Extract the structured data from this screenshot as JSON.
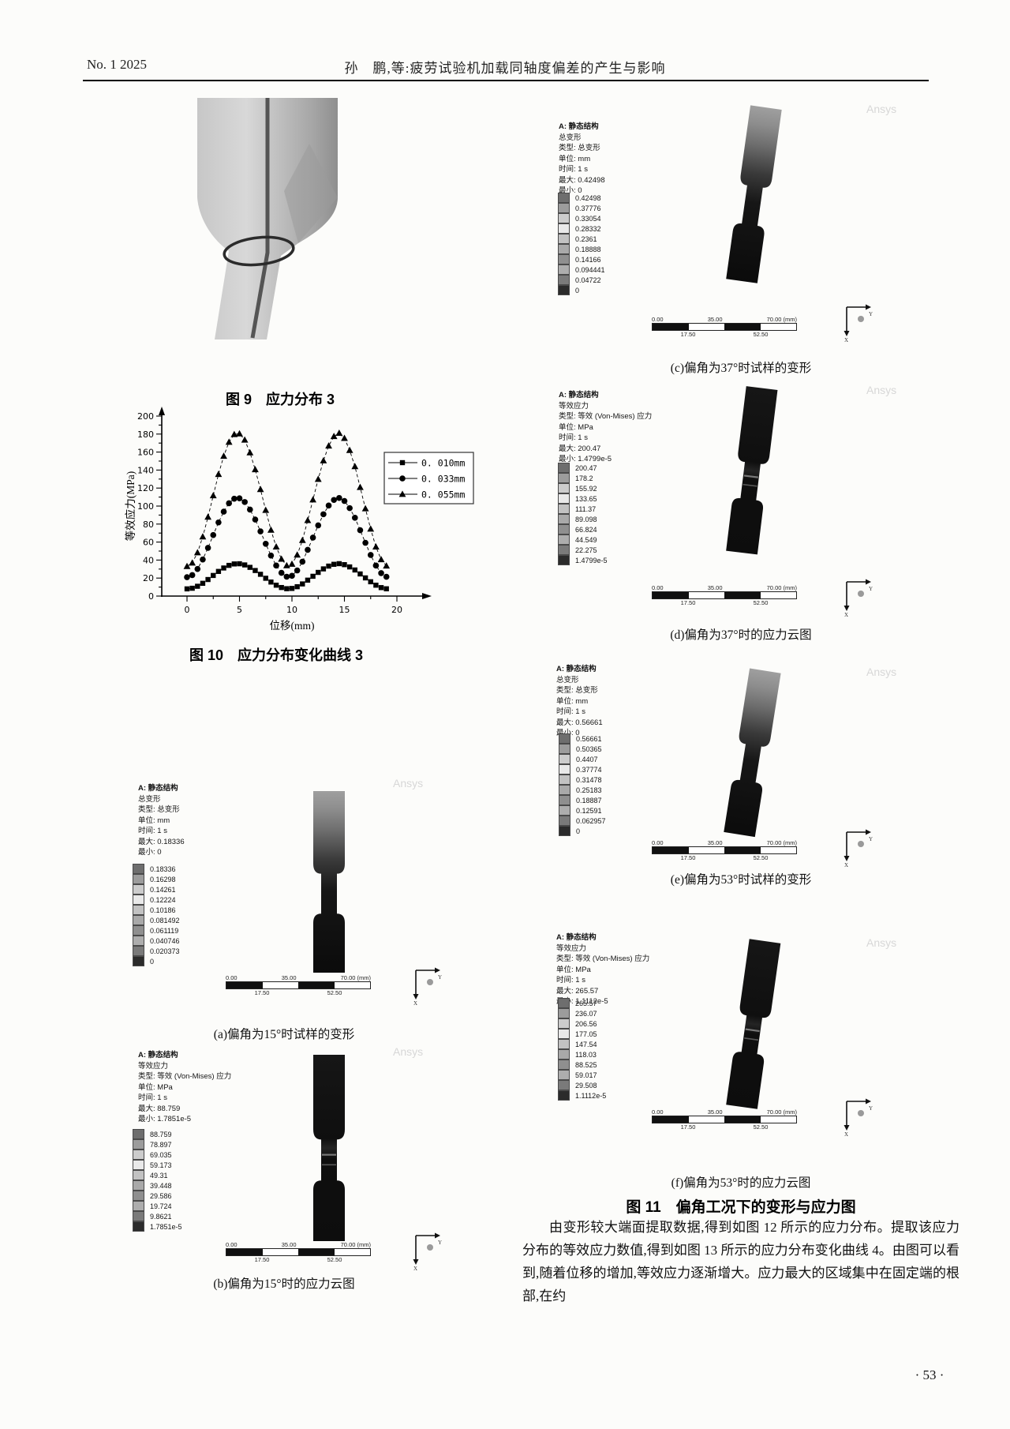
{
  "header": {
    "issue": "No. 1 2025",
    "title": "孙　鹏,等:疲劳试验机加载同轴度偏差的产生与影响"
  },
  "figures": {
    "fig9_caption": "图 9　应力分布 3",
    "fig10_caption": "图 10　应力分布变化曲线 3",
    "fig11_caption": "图 11　偏角工况下的变形与应力图"
  },
  "chart_data": {
    "type": "line",
    "title": "",
    "xlabel": "位移(mm)",
    "ylabel": "等效应力(MPa)",
    "xlim": [
      0,
      20
    ],
    "ylim": [
      0,
      200
    ],
    "x_tick_step": 5,
    "y_tick_step": 20,
    "grid": false,
    "legend_position": "top-right",
    "x_start": 0,
    "x_step": 0.5,
    "series": [
      {
        "name": "0. 010mm",
        "marker": "square",
        "values": [
          8,
          8.7,
          10.9,
          14.2,
          18.4,
          22.9,
          27.4,
          31.2,
          34.1,
          35.7,
          35.9,
          34.6,
          31.9,
          28.4,
          24.2,
          19.8,
          15.6,
          12.1,
          9.5,
          8.2,
          8.5,
          10.4,
          13.5,
          17.7,
          22,
          26.3,
          30.2,
          33.3,
          35.3,
          36,
          34.9,
          32.4,
          29,
          24.6,
          20.2,
          15.9,
          12.1,
          9.4,
          8.1
        ]
      },
      {
        "name": "0. 033mm",
        "marker": "circle",
        "values": [
          21,
          23.3,
          30.1,
          40.6,
          53.6,
          67.8,
          81.8,
          93.8,
          103.1,
          108.2,
          108.6,
          104.5,
          96.1,
          85,
          71.9,
          58.1,
          45,
          33.9,
          25.8,
          21.5,
          22.5,
          28.5,
          38.2,
          51.4,
          65,
          78.6,
          90.9,
          100.6,
          106.8,
          109,
          105.7,
          97.7,
          87,
          73.2,
          59.2,
          45.7,
          33.9,
          25.5,
          21.4
        ]
      },
      {
        "name": "0. 055mm",
        "marker": "triangle",
        "values": [
          33,
          36.9,
          48.3,
          65.9,
          87.8,
          111.6,
          135.3,
          155.5,
          171.1,
          179.6,
          180.4,
          173.5,
          159.3,
          140.6,
          118.6,
          95.4,
          73.4,
          54.7,
          41.1,
          33.9,
          35.5,
          45.7,
          62,
          84.1,
          107,
          129.9,
          150.5,
          166.9,
          177.4,
          181,
          175.4,
          162,
          144,
          120.9,
          97.2,
          74.6,
          54.7,
          40.6,
          33.6
        ]
      }
    ]
  },
  "colorbar_colors": [
    "#6e6e6e",
    "#9c9c9c",
    "#cccccc",
    "#e9e9e9",
    "#c2c2c2",
    "#a9a9a9",
    "#8f8f8f",
    "#adadad",
    "#7a7a7a",
    "#2b2b2b"
  ],
  "ansys_panels": [
    {
      "label": "a",
      "kind": "deformation",
      "watermark": "Ansys",
      "caption": "(a)偏角为15°时试样的变形",
      "header_lines": [
        "A: 静态结构",
        "总变形",
        "类型: 总变形",
        "单位: mm",
        "时间: 1 s",
        "最大: 0.18336",
        "最小: 0"
      ],
      "scale_labels": [
        "0.18336",
        "0.16298",
        "0.14261",
        "0.12224",
        "0.10186",
        "0.081492",
        "0.061119",
        "0.040746",
        "0.020373",
        "0"
      ],
      "ruler": {
        "top": [
          "0.00",
          "35.00",
          "70.00 (mm)"
        ],
        "bottom": [
          "17.50",
          "52.50"
        ]
      },
      "triad_labels": [
        "Y",
        "X"
      ]
    },
    {
      "label": "b",
      "kind": "stress",
      "watermark": "Ansys",
      "caption": "(b)偏角为15°时的应力云图",
      "header_lines": [
        "A: 静态结构",
        "等效应力",
        "类型: 等效 (Von-Mises) 应力",
        "单位: MPa",
        "时间: 1 s",
        "最大: 88.759",
        "最小: 1.7851e-5"
      ],
      "scale_labels": [
        "88.759",
        "78.897",
        "69.035",
        "59.173",
        "49.31",
        "39.448",
        "29.586",
        "19.724",
        "9.8621",
        "1.7851e-5"
      ],
      "ruler": {
        "top": [
          "0.00",
          "35.00",
          "70.00 (mm)"
        ],
        "bottom": [
          "17.50",
          "52.50"
        ]
      },
      "triad_labels": [
        "Y",
        "X"
      ]
    },
    {
      "label": "c",
      "kind": "deformation",
      "watermark": "Ansys",
      "caption": "(c)偏角为37°时试样的变形",
      "header_lines": [
        "A: 静态结构",
        "总变形",
        "类型: 总变形",
        "单位: mm",
        "时间: 1 s",
        "最大: 0.42498",
        "最小: 0"
      ],
      "scale_labels": [
        "0.42498",
        "0.37776",
        "0.33054",
        "0.28332",
        "0.2361",
        "0.18888",
        "0.14166",
        "0.094441",
        "0.04722",
        "0"
      ],
      "ruler": {
        "top": [
          "0.00",
          "35.00",
          "70.00 (mm)"
        ],
        "bottom": [
          "17.50",
          "52.50"
        ]
      },
      "triad_labels": [
        "Y",
        "X"
      ]
    },
    {
      "label": "d",
      "kind": "stress",
      "watermark": "Ansys",
      "caption": "(d)偏角为37°时的应力云图",
      "header_lines": [
        "A: 静态结构",
        "等效应力",
        "类型: 等效 (Von-Mises) 应力",
        "单位: MPa",
        "时间: 1 s",
        "最大: 200.47",
        "最小: 1.4799e-5"
      ],
      "scale_labels": [
        "200.47",
        "178.2",
        "155.92",
        "133.65",
        "111.37",
        "89.098",
        "66.824",
        "44.549",
        "22.275",
        "1.4799e-5"
      ],
      "ruler": {
        "top": [
          "0.00",
          "35.00",
          "70.00 (mm)"
        ],
        "bottom": [
          "17.50",
          "52.50"
        ]
      },
      "triad_labels": [
        "Y",
        "X"
      ]
    },
    {
      "label": "e",
      "kind": "deformation",
      "watermark": "Ansys",
      "caption": "(e)偏角为53°时试样的变形",
      "header_lines": [
        "A: 静态结构",
        "总变形",
        "类型: 总变形",
        "单位: mm",
        "时间: 1 s",
        "最大: 0.56661",
        "最小: 0"
      ],
      "scale_labels": [
        "0.56661",
        "0.50365",
        "0.4407",
        "0.37774",
        "0.31478",
        "0.25183",
        "0.18887",
        "0.12591",
        "0.062957",
        "0"
      ],
      "ruler": {
        "top": [
          "0.00",
          "35.00",
          "70.00 (mm)"
        ],
        "bottom": [
          "17.50",
          "52.50"
        ]
      },
      "triad_labels": [
        "Y",
        "X"
      ]
    },
    {
      "label": "f",
      "kind": "stress",
      "watermark": "Ansys",
      "caption": "(f)偏角为53°时的应力云图",
      "header_lines": [
        "A: 静态结构",
        "等效应力",
        "类型: 等效 (Von-Mises) 应力",
        "单位: MPa",
        "时间: 1 s",
        "最大: 265.57",
        "最小: 1.1112e-5"
      ],
      "scale_labels": [
        "265.57",
        "236.07",
        "206.56",
        "177.05",
        "147.54",
        "118.03",
        "88.525",
        "59.017",
        "29.508",
        "1.1112e-5"
      ],
      "ruler": {
        "top": [
          "0.00",
          "35.00",
          "70.00 (mm)"
        ],
        "bottom": [
          "17.50",
          "52.50"
        ]
      },
      "triad_labels": [
        "Y",
        "X"
      ]
    }
  ],
  "body_paragraph": "由变形较大端面提取数据,得到如图 12 所示的应力分布。提取该应力分布的等效应力数值,得到如图 13 所示的应力分布变化曲线 4。由图可以看到,随着位移的增加,等效应力逐渐增大。应力最大的区域集中在固定端的根部,在约",
  "page_number": "· 53 ·"
}
